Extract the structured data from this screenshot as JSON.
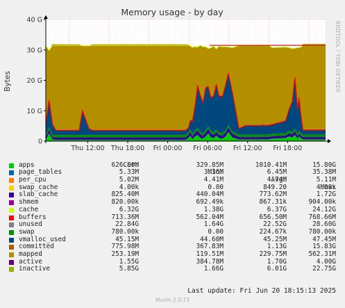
{
  "chart_data": {
    "type": "area",
    "title": "Memory usage - by day",
    "ylabel": "Bytes",
    "side_label": "RRDTOOL / TOBI OETIKER",
    "ylim": [
      0,
      40
    ],
    "yticks": [
      "0",
      "10 G",
      "20 G",
      "30 G",
      "40 G"
    ],
    "xticks": [
      "Thu 12:00",
      "Thu 18:00",
      "Fri 00:00",
      "Fri 06:00",
      "Fri 12:00",
      "Fri 18:00"
    ],
    "x": [
      0,
      0.5,
      1,
      1.5,
      2,
      4,
      5,
      5.5,
      6,
      6.5,
      7,
      8,
      10,
      11,
      11.3,
      11.7,
      12,
      12.5,
      13,
      13.5,
      14,
      14.5,
      15,
      15.5,
      16,
      16.3,
      16.6,
      17,
      18,
      20,
      20.5,
      21,
      21.4,
      21.7,
      22,
      22.4,
      22.8,
      23.2,
      23.6,
      24,
      24.4,
      24.8,
      25.2,
      25.6,
      26,
      26.5,
      27,
      27.4,
      28,
      29,
      30,
      30.5,
      31,
      31.4,
      31.7,
      32,
      32.3,
      32.6,
      33,
      33.5,
      34,
      36,
      36.5,
      37,
      37.4,
      37.8,
      38,
      38.3,
      38.6,
      39,
      39.5,
      40,
      40.5,
      41,
      41.5,
      42
    ],
    "series": [
      {
        "name": "apps",
        "color": "#00cc00",
        "values": [
          0.4,
          2.5,
          0.5,
          0.4,
          0.4,
          0.4,
          0.4,
          0.4,
          0.4,
          0.4,
          0.4,
          0.4,
          0.4,
          0.4,
          0.4,
          0.4,
          0.4,
          0.4,
          0.4,
          0.4,
          0.4,
          0.4,
          0.4,
          0.4,
          0.4,
          0.4,
          0.4,
          0.4,
          0.4,
          0.4,
          0.4,
          0.4,
          1.0,
          1.8,
          0.6,
          1.5,
          2.0,
          1.0,
          0.8,
          1.5,
          2.5,
          1.2,
          1.0,
          1.8,
          1.0,
          0.8,
          1.5,
          3.0,
          1.2,
          0.5,
          0.5,
          0.5,
          0.5,
          0.5,
          0.5,
          0.5,
          0.5,
          0.6,
          0.5,
          0.6,
          0.8,
          1.0,
          1.5,
          1.2,
          2.0,
          0.8,
          1.5,
          1.0,
          0.5,
          0.5,
          0.5,
          0.5,
          0.5,
          0.5,
          0.5,
          0.5
        ]
      },
      {
        "name": "page_tables",
        "color": "#0066b3",
        "values": [
          0.02,
          0.02,
          0.02,
          0.02,
          0.02,
          0.02,
          0.02,
          0.02,
          0.02,
          0.02,
          0.02,
          0.02,
          0.02,
          0.02,
          0.02,
          0.02,
          0.02,
          0.02,
          0.02,
          0.02,
          0.02,
          0.02,
          0.02,
          0.02,
          0.02,
          0.02,
          0.02,
          0.02,
          0.02,
          0.02,
          0.02,
          0.02,
          0.02,
          0.02,
          0.02,
          0.02,
          0.02,
          0.02,
          0.02,
          0.02,
          0.02,
          0.02,
          0.02,
          0.02,
          0.02,
          0.02,
          0.02,
          0.02,
          0.02,
          0.02,
          0.02,
          0.02,
          0.02,
          0.02,
          0.02,
          0.02,
          0.02,
          0.02,
          0.02,
          0.02,
          0.02,
          0.02,
          0.02,
          0.02,
          0.02,
          0.02,
          0.02,
          0.02,
          0.02,
          0.02,
          0.02,
          0.02,
          0.02,
          0.02,
          0.02,
          0.02
        ]
      },
      {
        "name": "per_cpu",
        "color": "#ff8000",
        "values": [
          0.01,
          0.01,
          0.01,
          0.01,
          0.01,
          0.01,
          0.01,
          0.01,
          0.01,
          0.01,
          0.01,
          0.01,
          0.01,
          0.01,
          0.01,
          0.01,
          0.01,
          0.01,
          0.01,
          0.01,
          0.01,
          0.01,
          0.01,
          0.01,
          0.01,
          0.01,
          0.01,
          0.01,
          0.01,
          0.01,
          0.01,
          0.01,
          0.01,
          0.01,
          0.01,
          0.01,
          0.01,
          0.01,
          0.01,
          0.01,
          0.01,
          0.01,
          0.01,
          0.01,
          0.01,
          0.01,
          0.01,
          0.01,
          0.01,
          0.01,
          0.01,
          0.01,
          0.01,
          0.01,
          0.01,
          0.01,
          0.01,
          0.01,
          0.01,
          0.01,
          0.01,
          0.01,
          0.01,
          0.01,
          0.01,
          0.01,
          0.01,
          0.01,
          0.01,
          0.01,
          0.01,
          0.01,
          0.01,
          0.01,
          0.01,
          0.01
        ]
      },
      {
        "name": "swap_cache",
        "color": "#ffcc00",
        "values": [
          0,
          0,
          0,
          0,
          0,
          0,
          0,
          0,
          0,
          0,
          0,
          0,
          0,
          0,
          0,
          0,
          0,
          0,
          0,
          0,
          0,
          0,
          0,
          0,
          0,
          0,
          0,
          0,
          0,
          0,
          0,
          0,
          0,
          0,
          0,
          0,
          0,
          0,
          0,
          0,
          0,
          0,
          0,
          0,
          0,
          0,
          0,
          0,
          0,
          0,
          0,
          0,
          0,
          0,
          0,
          0,
          0,
          0,
          0,
          0,
          0,
          0,
          0,
          0,
          0,
          0,
          0,
          0,
          0,
          0,
          0,
          0,
          0,
          0,
          0,
          0
        ]
      },
      {
        "name": "slab_cache",
        "color": "#330099",
        "values": [
          0.8,
          1.2,
          0.8,
          0.8,
          0.8,
          0.8,
          0.8,
          0.8,
          0.8,
          0.8,
          0.8,
          0.8,
          0.8,
          0.8,
          0.8,
          0.8,
          0.8,
          0.8,
          0.8,
          0.8,
          0.8,
          0.8,
          0.8,
          0.8,
          0.8,
          0.8,
          0.8,
          0.8,
          0.8,
          0.8,
          0.8,
          0.8,
          1.0,
          1.2,
          1.0,
          1.2,
          1.5,
          1.2,
          1.0,
          1.2,
          1.5,
          1.2,
          1.0,
          1.2,
          1.0,
          1.0,
          1.2,
          1.5,
          1.2,
          0.8,
          0.8,
          0.8,
          0.8,
          0.8,
          0.8,
          0.8,
          0.8,
          0.8,
          0.8,
          0.8,
          0.8,
          0.8,
          1.0,
          1.0,
          1.2,
          0.8,
          1.0,
          0.8,
          0.8,
          0.8,
          0.8,
          0.8,
          0.8,
          0.8,
          0.8,
          0.8
        ]
      },
      {
        "name": "shmem",
        "color": "#008f00",
        "values": [
          0.8,
          0.8,
          0.8,
          0.8,
          0.8,
          0.8,
          0.8,
          0.8,
          0.8,
          0.8,
          0.8,
          0.8,
          0.8,
          0.8,
          0.8,
          0.8,
          0.8,
          0.8,
          0.8,
          0.8,
          0.8,
          0.8,
          0.8,
          0.8,
          0.8,
          0.8,
          0.8,
          0.8,
          0.8,
          0.8,
          0.8,
          0.8,
          0.8,
          0.8,
          0.8,
          0.8,
          0.8,
          0.8,
          0.8,
          0.8,
          0.8,
          0.8,
          0.8,
          0.8,
          0.8,
          0.8,
          0.8,
          0.8,
          0.8,
          0.8,
          0.8,
          0.8,
          0.8,
          0.8,
          0.8,
          0.8,
          0.8,
          0.8,
          0.8,
          0.8,
          0.8,
          0.8,
          0.8,
          0.8,
          0.8,
          0.8,
          0.8,
          0.8,
          0.8,
          0.8,
          0.8,
          0.8,
          0.8,
          0.8,
          0.8,
          0.8
        ]
      },
      {
        "name": "cache",
        "color": "#00487d",
        "values": [
          4.0,
          9.0,
          3.5,
          1.5,
          1.5,
          1.5,
          1.5,
          8.0,
          5.0,
          2.0,
          1.5,
          1.5,
          1.5,
          1.5,
          1.5,
          1.5,
          1.5,
          1.5,
          1.5,
          1.5,
          1.5,
          1.5,
          1.5,
          1.5,
          1.5,
          1.5,
          1.5,
          1.5,
          1.5,
          1.5,
          1.5,
          1.5,
          1.5,
          3.0,
          4.0,
          8.0,
          14.0,
          12.0,
          10.0,
          14.0,
          13.0,
          11.0,
          12.0,
          15.0,
          12.0,
          12.0,
          15.0,
          17.0,
          13.0,
          2.0,
          3.0,
          3.0,
          3.0,
          3.0,
          3.0,
          3.0,
          3.0,
          3.0,
          3.0,
          3.0,
          3.0,
          4.0,
          7.0,
          10.0,
          17.0,
          8.0,
          11.0,
          6.0,
          1.5,
          1.5,
          1.5,
          1.5,
          1.5,
          1.5,
          1.5,
          1.5
        ]
      },
      {
        "name": "buffers",
        "color": "#b35a00",
        "values": [
          0.3,
          0.3,
          0.3,
          0.3,
          0.3,
          0.3,
          0.3,
          0.3,
          0.3,
          0.3,
          0.3,
          0.3,
          0.3,
          0.3,
          0.3,
          0.3,
          0.3,
          0.3,
          0.3,
          0.3,
          0.3,
          0.3,
          0.3,
          0.3,
          0.3,
          0.3,
          0.3,
          0.3,
          0.3,
          0.3,
          0.3,
          0.3,
          0.4,
          0.5,
          0.4,
          0.5,
          0.6,
          0.5,
          0.4,
          0.5,
          0.6,
          0.5,
          0.4,
          0.5,
          0.4,
          0.4,
          0.5,
          0.6,
          0.5,
          0.3,
          0.3,
          0.3,
          0.3,
          0.3,
          0.3,
          0.3,
          0.3,
          0.3,
          0.3,
          0.3,
          0.3,
          0.3,
          0.4,
          0.4,
          0.5,
          0.3,
          0.4,
          0.3,
          0.3,
          0.3,
          0.3,
          0.3,
          0.3,
          0.3,
          0.3,
          0.3
        ]
      },
      {
        "name": "unused",
        "color": "#b38f00",
        "values": [
          25.0,
          16.0,
          26.0,
          28.0,
          28.0,
          28.0,
          28.0,
          21.0,
          24.0,
          27.0,
          28.0,
          28.0,
          28.0,
          28.0,
          28.0,
          28.0,
          28.0,
          28.0,
          28.0,
          28.0,
          28.0,
          28.0,
          28.0,
          28.0,
          28.0,
          28.0,
          28.0,
          28.0,
          28.0,
          28.0,
          28.0,
          28.0,
          27.0,
          24.0,
          24.0,
          19.0,
          12.0,
          16.0,
          18.0,
          13.0,
          12.0,
          16.0,
          16.0,
          11.0,
          16.0,
          16.0,
          12.0,
          8.0,
          14.0,
          27.0,
          26.0,
          26.0,
          26.0,
          26.0,
          26.0,
          26.0,
          26.0,
          26.0,
          26.0,
          26.0,
          25.0,
          24.0,
          20.0,
          17.0,
          9.0,
          20.0,
          16.0,
          22.0,
          28.0,
          28.0,
          28.0,
          28.0,
          28.0,
          28.0,
          28.0,
          28.0
        ]
      }
    ]
  },
  "legend": {
    "headers": [
      "Cur:",
      "Min:",
      "Avg:",
      "Max:"
    ],
    "rows": [
      {
        "name": "apps",
        "color": "#00cc00",
        "cur": "626.80M",
        "min": "329.85M",
        "avg": "1010.41M",
        "max": "15.80G"
      },
      {
        "name": "page_tables",
        "color": "#0066b3",
        "cur": "5.33M",
        "min": "3.36M",
        "avg": "6.45M",
        "max": "35.38M"
      },
      {
        "name": "per_cpu",
        "color": "#ff8000",
        "cur": "5.02M",
        "min": "4.41M",
        "avg": "4.74M",
        "max": "5.11M"
      },
      {
        "name": "swap_cache",
        "color": "#ffcc00",
        "cur": "4.00k",
        "min": "0.00",
        "avg": "849.20",
        "max": "4.00k"
      },
      {
        "name": "slab_cache",
        "color": "#330099",
        "cur": "825.40M",
        "min": "440.04M",
        "avg": "773.62M",
        "max": "1.72G"
      },
      {
        "name": "shmem",
        "color": "#990099",
        "cur": "820.00k",
        "min": "692.49k",
        "avg": "867.31k",
        "max": "904.00k"
      },
      {
        "name": "cache",
        "color": "#ccff00",
        "cur": "6.32G",
        "min": "1.38G",
        "avg": "6.37G",
        "max": "24.12G"
      },
      {
        "name": "buffers",
        "color": "#ff0000",
        "cur": "713.36M",
        "min": "562.04M",
        "avg": "656.50M",
        "max": "768.66M"
      },
      {
        "name": "unused",
        "color": "#808080",
        "cur": "22.84G",
        "min": "1.64G",
        "avg": "22.52G",
        "max": "28.60G"
      },
      {
        "name": "swap",
        "color": "#008f00",
        "cur": "780.00k",
        "min": "0.00",
        "avg": "224.67k",
        "max": "780.00k"
      },
      {
        "name": "vmalloc_used",
        "color": "#00487d",
        "cur": "45.15M",
        "min": "44.60M",
        "avg": "45.25M",
        "max": "47.45M"
      },
      {
        "name": "committed",
        "color": "#b35a00",
        "cur": "775.98M",
        "min": "367.83M",
        "avg": "1.13G",
        "max": "15.83G"
      },
      {
        "name": "mapped",
        "color": "#b38f00",
        "cur": "253.19M",
        "min": "119.51M",
        "avg": "229.75M",
        "max": "562.31M"
      },
      {
        "name": "active",
        "color": "#6b006b",
        "cur": "1.55G",
        "min": "384.78M",
        "avg": "1.70G",
        "max": "4.00G"
      },
      {
        "name": "inactive",
        "color": "#8fb300",
        "cur": "5.85G",
        "min": "1.66G",
        "avg": "6.01G",
        "max": "22.75G"
      }
    ]
  },
  "footer": {
    "last_update": "Last update: Fri Jun 20 18:15:13 2025",
    "munin_version": "Munin 2.0.73"
  }
}
